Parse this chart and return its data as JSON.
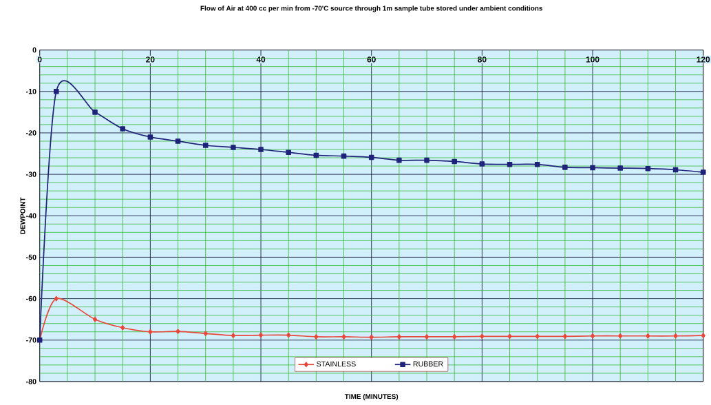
{
  "chart_data": {
    "type": "line",
    "title": "Flow of Air at 400 cc per min from -70'C source through 1m sample tube stored under ambient conditions",
    "xlabel": "TIME (MINUTES)",
    "ylabel": "DEWPOINT",
    "x": [
      0,
      3,
      10,
      15,
      20,
      25,
      30,
      35,
      40,
      45,
      50,
      55,
      60,
      65,
      70,
      75,
      80,
      85,
      90,
      95,
      100,
      105,
      110,
      115,
      120
    ],
    "series": [
      {
        "name": "STAINLESS",
        "color": "#e8483a",
        "marker": "diamond",
        "values": [
          -70,
          -60,
          -65,
          -67,
          -68,
          -67.9,
          -68.4,
          -68.9,
          -68.8,
          -68.8,
          -69.2,
          -69.2,
          -69.3,
          -69.2,
          -69.2,
          -69.2,
          -69.1,
          -69.1,
          -69.1,
          -69.1,
          -69,
          -69,
          -69,
          -69,
          -68.9
        ]
      },
      {
        "name": "RUBBER",
        "color": "#1f237a",
        "marker": "square",
        "values": [
          -70,
          -10,
          -15,
          -19,
          -21,
          -22,
          -23,
          -23.5,
          -24,
          -24.7,
          -25.4,
          -25.6,
          -25.9,
          -26.6,
          -26.6,
          -26.9,
          -27.5,
          -27.6,
          -27.6,
          -28.3,
          -28.4,
          -28.5,
          -28.6,
          -28.9,
          -29.5
        ]
      }
    ],
    "xlim": [
      0,
      120
    ],
    "ylim": [
      -80,
      0
    ],
    "xticks": [
      0,
      {
        "value": 5,
        "label": null
      },
      {
        "value": 10,
        "label": null
      },
      {
        "value": 15,
        "label": null
      },
      20,
      {
        "value": 25,
        "label": null
      },
      {
        "value": 30,
        "label": null
      },
      {
        "value": 35,
        "label": null
      },
      40,
      {
        "value": 45,
        "label": null
      },
      {
        "value": 50,
        "label": null
      },
      {
        "value": 55,
        "label": null
      },
      60,
      {
        "value": 65,
        "label": null
      },
      {
        "value": 70,
        "label": null
      },
      {
        "value": 75,
        "label": null
      },
      80,
      {
        "value": 85,
        "label": null
      },
      {
        "value": 90,
        "label": null
      },
      {
        "value": 95,
        "label": null
      },
      100,
      {
        "value": 105,
        "label": null
      },
      {
        "value": 110,
        "label": null
      },
      {
        "value": 115,
        "label": null
      },
      120
    ],
    "yticks": [
      -80,
      {
        "value": -78,
        "label": null
      },
      {
        "value": -76,
        "label": null
      },
      {
        "value": -74,
        "label": null
      },
      {
        "value": -72,
        "label": null
      },
      -70,
      {
        "value": -68,
        "label": null
      },
      {
        "value": -66,
        "label": null
      },
      {
        "value": -64,
        "label": null
      },
      {
        "value": -62,
        "label": null
      },
      -60,
      {
        "value": -58,
        "label": null
      },
      {
        "value": -56,
        "label": null
      },
      {
        "value": -54,
        "label": null
      },
      {
        "value": -52,
        "label": null
      },
      -50,
      {
        "value": -48,
        "label": null
      },
      {
        "value": -46,
        "label": null
      },
      {
        "value": -44,
        "label": null
      },
      {
        "value": -42,
        "label": null
      },
      -40,
      {
        "value": -38,
        "label": null
      },
      {
        "value": -36,
        "label": null
      },
      {
        "value": -34,
        "label": null
      },
      {
        "value": -32,
        "label": null
      },
      -30,
      {
        "value": -28,
        "label": null
      },
      {
        "value": -26,
        "label": null
      },
      {
        "value": -24,
        "label": null
      },
      {
        "value": -22,
        "label": null
      },
      -20,
      {
        "value": -18,
        "label": null
      },
      {
        "value": -16,
        "label": null
      },
      {
        "value": -14,
        "label": null
      },
      {
        "value": -12,
        "label": null
      },
      -10,
      {
        "value": -8,
        "label": null
      },
      {
        "value": -6,
        "label": null
      },
      {
        "value": -4,
        "label": null
      },
      {
        "value": -2,
        "label": null
      },
      0
    ],
    "grid": true,
    "legend": "bottom"
  }
}
